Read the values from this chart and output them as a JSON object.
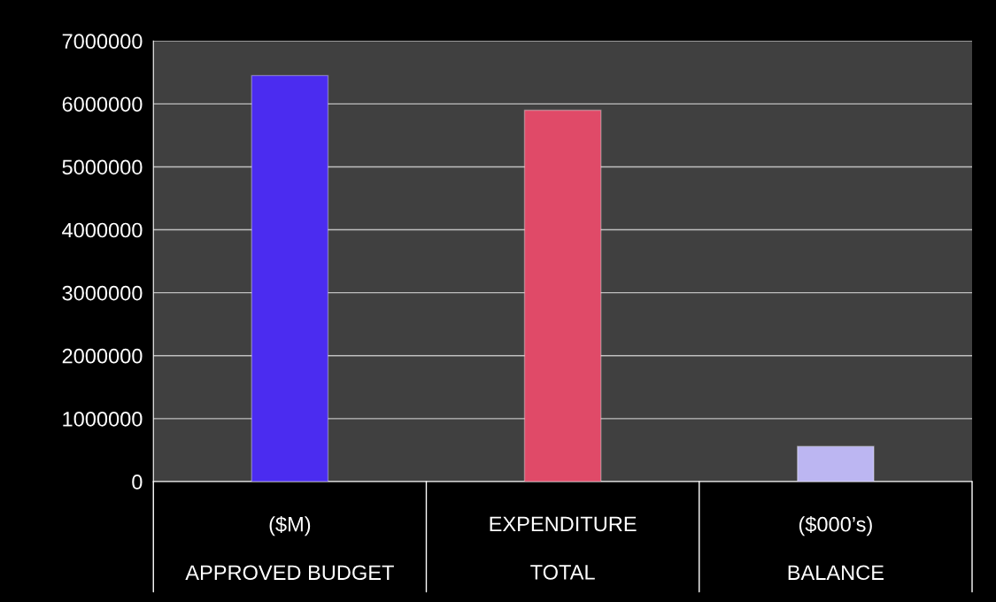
{
  "chart_data": {
    "type": "bar",
    "categories": [
      "($M)\nAPPROVED BUDGET",
      "EXPENDITURE\nTOTAL",
      "($000’s)\nBALANCE"
    ],
    "values": [
      6450000,
      5900000,
      560000
    ],
    "colors": [
      "#4b2cf0",
      "#e04a68",
      "#bcb6f2"
    ],
    "ylim": [
      0,
      7000000
    ],
    "yticks": [
      0,
      1000000,
      2000000,
      3000000,
      4000000,
      5000000,
      6000000,
      7000000
    ],
    "grid": "y",
    "legend": false
  }
}
